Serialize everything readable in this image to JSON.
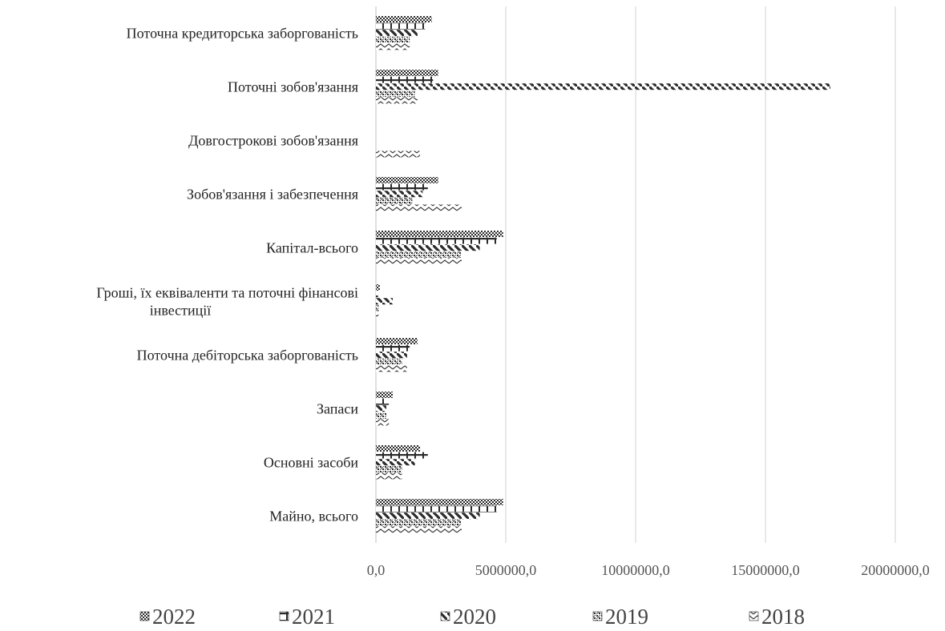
{
  "chart_data": {
    "type": "bar",
    "orientation": "horizontal",
    "categories": [
      "Майно, всього",
      "Основні засоби",
      "Запаси",
      "Поточна дебіторська заборгованість",
      "Гроші, їх еквіваленти та поточні фінансові інвестиції",
      "Капітал-всього",
      "Зобов'язання і забезпечення",
      "Довгострокові зобов'язання",
      "Поточні зобов'язання",
      "Поточна кредиторська заборгованість"
    ],
    "category_lines": [
      [
        "Майно, всього"
      ],
      [
        "Основні засоби"
      ],
      [
        "Запаси"
      ],
      [
        "Поточна дебіторська заборгованість"
      ],
      [
        "Гроші, їх еквіваленти та поточні фінансові",
        "інвестиції"
      ],
      [
        "Капітал-всього"
      ],
      [
        "Зобов'язання і забезпечення"
      ],
      [
        "Довгострокові зобов'язання"
      ],
      [
        "Поточні зобов'язання"
      ],
      [
        "Поточна кредиторська заборгованість"
      ]
    ],
    "series": [
      {
        "name": "2022",
        "pattern": "checker",
        "values": [
          4900000,
          1700000,
          650000,
          1600000,
          150000,
          4900000,
          2400000,
          0,
          2400000,
          2150000
        ]
      },
      {
        "name": "2021",
        "pattern": "comb",
        "values": [
          4650000,
          2000000,
          500000,
          1300000,
          80000,
          4650000,
          2000000,
          0,
          2200000,
          1900000
        ]
      },
      {
        "name": "2020",
        "pattern": "diagonal",
        "values": [
          4000000,
          1500000,
          400000,
          1200000,
          650000,
          4000000,
          1800000,
          0,
          17500000,
          1600000
        ]
      },
      {
        "name": "2019",
        "pattern": "dots",
        "values": [
          3300000,
          1000000,
          400000,
          1000000,
          100000,
          3300000,
          1400000,
          0,
          1500000,
          1300000
        ]
      },
      {
        "name": "2018",
        "pattern": "wave",
        "values": [
          3300000,
          1000000,
          500000,
          1200000,
          100000,
          3300000,
          3300000,
          1700000,
          1600000,
          1300000
        ]
      }
    ],
    "x_ticks": [
      "0,0",
      "5000000,0",
      "10000000,0",
      "15000000,0",
      "20000000,0"
    ],
    "xlim": [
      0,
      20000000
    ],
    "grid": true,
    "legend_position": "bottom",
    "bar_color": "#2b2b2b",
    "grid_color": "#d9d9d9"
  }
}
